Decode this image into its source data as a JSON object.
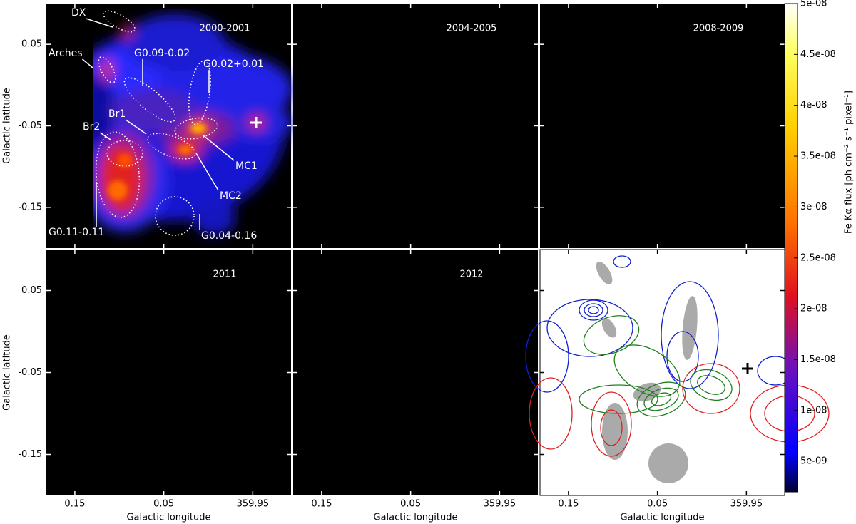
{
  "figure": {
    "xlabel": "Galactic longitude",
    "ylabel": "Galactic latitude",
    "xlim": [
      0.182,
      -0.093
    ],
    "ylim": [
      -0.2,
      0.1
    ],
    "xticks": [
      0.15,
      0.05,
      {
        "value": -0.05,
        "label": "359.95"
      }
    ],
    "yticks": [
      0.05,
      -0.05,
      -0.15
    ],
    "panels": [
      {
        "label": "2000-2001"
      },
      {
        "label": "2004-2005"
      },
      {
        "label": "2008-2009"
      },
      {
        "label": "2011"
      },
      {
        "label": "2012"
      }
    ],
    "annotations": [
      "DX",
      "Arches",
      "G0.09-0.02",
      "G0.02+0.01",
      "Br1",
      "Br2",
      "MC1",
      "MC2",
      "G0.11-0.11",
      "G0.04-0.16"
    ],
    "colorbar": {
      "label": "Fe Kα flux [ph cm⁻² s⁻¹ pixel⁻¹]",
      "lim": [
        2e-09,
        5e-08
      ],
      "ticks": [
        {
          "value": 5e-09,
          "label": "5e-09"
        },
        {
          "value": 1e-08,
          "label": "1e-08"
        },
        {
          "value": 1.5e-08,
          "label": "1.5e-08"
        },
        {
          "value": 2e-08,
          "label": "2e-08"
        },
        {
          "value": 2.5e-08,
          "label": "2.5e-08"
        },
        {
          "value": 3e-08,
          "label": "3e-08"
        },
        {
          "value": 3.5e-08,
          "label": "3.5e-08"
        },
        {
          "value": 4e-08,
          "label": "4e-08"
        },
        {
          "value": 4.5e-08,
          "label": "4.5e-08"
        },
        {
          "value": 5e-08,
          "label": "5e-08"
        }
      ]
    }
  }
}
